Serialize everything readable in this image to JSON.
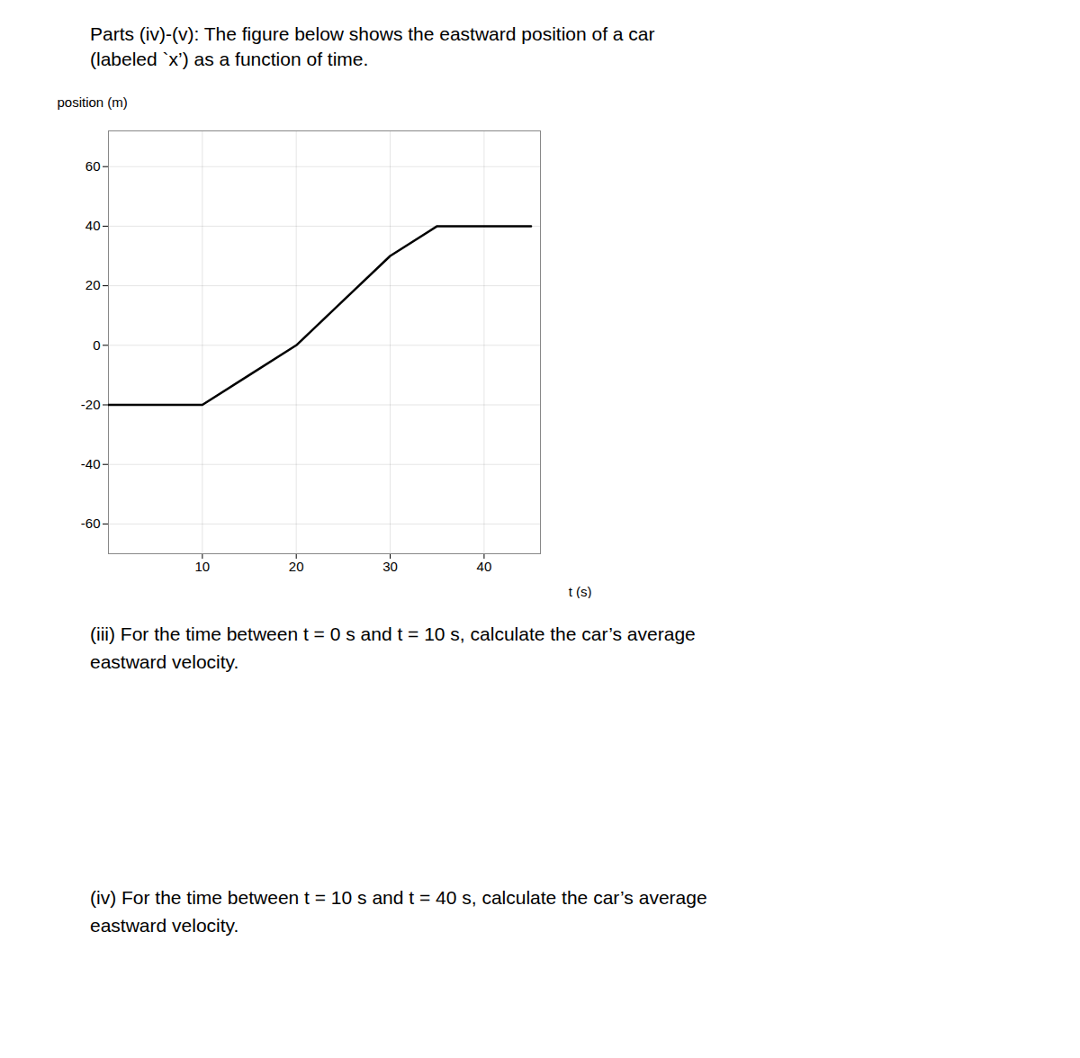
{
  "chart_data": {
    "type": "line",
    "title": "Parts (iv)-(v): The figure below shows the eastward position of a car\n(labeled `x’) as a function of time.",
    "x": [
      0,
      10,
      15,
      20,
      25,
      30,
      35,
      40,
      45
    ],
    "values": [
      -20,
      -20,
      -10,
      0,
      15,
      30,
      40,
      40,
      40
    ],
    "color": "#000000",
    "xlabel": "t (s)",
    "ylabel": "position (m)",
    "xlim": [
      0,
      46
    ],
    "ylim": [
      -70,
      72
    ],
    "xticks": [
      10,
      20,
      30,
      40
    ],
    "yticks": [
      -60,
      -40,
      -20,
      0,
      20,
      40,
      60
    ],
    "grid": true,
    "annotations": [
      "(iii) For the time between t = 0 s and t = 10 s, calculate the car’s average\neastward velocity.",
      "(iv) For the time between t = 10 s and t = 40 s, calculate the car’s average\neastward velocity."
    ]
  }
}
